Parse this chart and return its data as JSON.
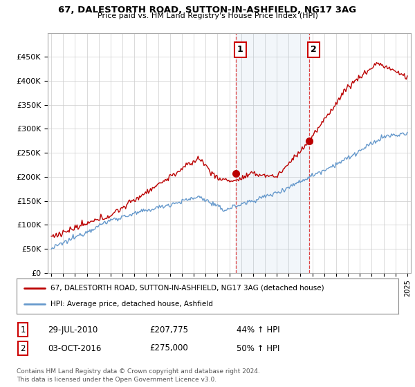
{
  "title": "67, DALESTORTH ROAD, SUTTON-IN-ASHFIELD, NG17 3AG",
  "subtitle": "Price paid vs. HM Land Registry's House Price Index (HPI)",
  "ylim": [
    0,
    500000
  ],
  "yticks": [
    0,
    50000,
    100000,
    150000,
    200000,
    250000,
    300000,
    350000,
    400000,
    450000
  ],
  "ytick_labels": [
    "£0",
    "£50K",
    "£100K",
    "£150K",
    "£200K",
    "£250K",
    "£300K",
    "£350K",
    "£400K",
    "£450K"
  ],
  "sale_color": "#bb0000",
  "hpi_color": "#6699cc",
  "vline_color": "#dd4444",
  "sale1_year": 2010.57,
  "sale1_price": 207775,
  "sale1_label": "1",
  "sale2_year": 2016.75,
  "sale2_price": 275000,
  "sale2_label": "2",
  "legend_line1": "67, DALESTORTH ROAD, SUTTON-IN-ASHFIELD, NG17 3AG (detached house)",
  "legend_line2": "HPI: Average price, detached house, Ashfield",
  "table_row1": [
    "1",
    "29-JUL-2010",
    "£207,775",
    "44% ↑ HPI"
  ],
  "table_row2": [
    "2",
    "03-OCT-2016",
    "£275,000",
    "50% ↑ HPI"
  ],
  "footnote": "Contains HM Land Registry data © Crown copyright and database right 2024.\nThis data is licensed under the Open Government Licence v3.0.",
  "background_color": "#ffffff",
  "grid_color": "#cccccc"
}
